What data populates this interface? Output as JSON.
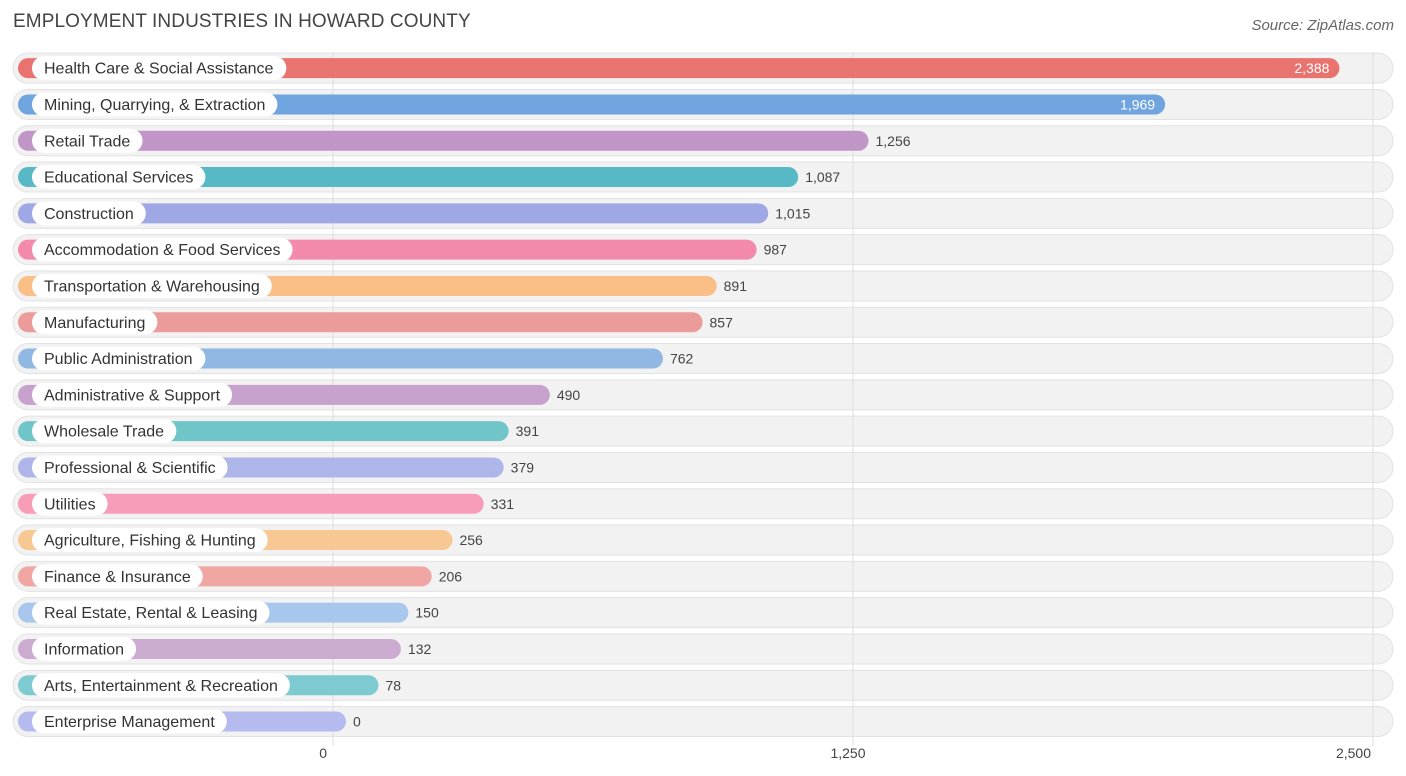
{
  "header": {
    "title": "EMPLOYMENT INDUSTRIES IN HOWARD COUNTY",
    "source": "Source: ZipAtlas.com"
  },
  "chart_data": {
    "type": "bar",
    "orientation": "horizontal",
    "title": "EMPLOYMENT INDUSTRIES IN HOWARD COUNTY",
    "xlim": [
      0,
      2500
    ],
    "x_ticks": [
      0,
      1250,
      2500
    ],
    "x_tick_labels": [
      "0",
      "1,250",
      "2,500"
    ],
    "grid": true,
    "categories": [
      "Health Care & Social Assistance",
      "Mining, Quarrying, & Extraction",
      "Retail Trade",
      "Educational Services",
      "Construction",
      "Accommodation & Food Services",
      "Transportation & Warehousing",
      "Manufacturing",
      "Public Administration",
      "Administrative & Support",
      "Wholesale Trade",
      "Professional & Scientific",
      "Utilities",
      "Agriculture, Fishing & Hunting",
      "Finance & Insurance",
      "Real Estate, Rental & Leasing",
      "Information",
      "Arts, Entertainment & Recreation",
      "Enterprise Management"
    ],
    "values": [
      2388,
      1969,
      1256,
      1087,
      1015,
      987,
      891,
      857,
      762,
      490,
      391,
      379,
      331,
      256,
      206,
      150,
      132,
      78,
      0
    ],
    "value_labels": [
      "2,388",
      "1,969",
      "1,256",
      "1,087",
      "1,015",
      "987",
      "891",
      "857",
      "762",
      "490",
      "391",
      "379",
      "331",
      "256",
      "206",
      "150",
      "132",
      "78",
      "0"
    ],
    "colors": [
      "#e8736f",
      "#6fa4de",
      "#c096c6",
      "#56b9c5",
      "#9fa8e4",
      "#f48aab",
      "#f9bf86",
      "#eb9c9a",
      "#90b8e3",
      "#c6a2cc",
      "#70c5c9",
      "#aeb5e9",
      "#f79db8",
      "#f8c894",
      "#f0a7a3",
      "#a8c7ec",
      "#cbabd0",
      "#7dcbd0",
      "#b5bbee"
    ]
  }
}
